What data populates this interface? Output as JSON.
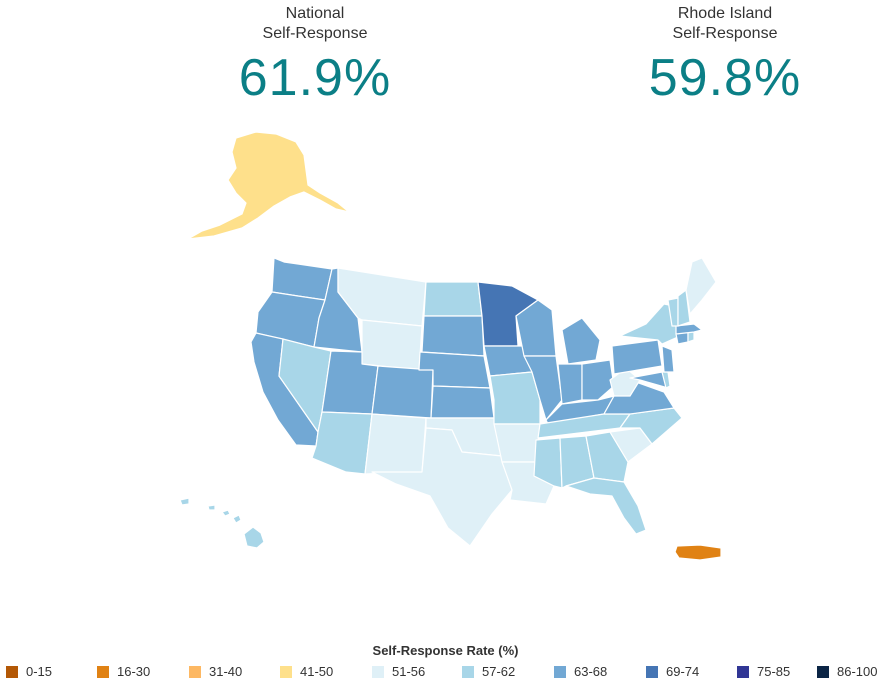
{
  "header": {
    "national": {
      "label_line1": "National",
      "label_line2": "Self-Response",
      "value": "61.9%"
    },
    "state": {
      "label_line1": "Rhode Island",
      "label_line2": "Self-Response",
      "value": "59.8%"
    }
  },
  "legend": {
    "title": "Self-Response Rate (%)",
    "items": [
      {
        "label": "0-15",
        "color": "#b35806"
      },
      {
        "label": "16-30",
        "color": "#e08214"
      },
      {
        "label": "31-40",
        "color": "#fdb863"
      },
      {
        "label": "41-50",
        "color": "#fee08b"
      },
      {
        "label": "51-56",
        "color": "#dff0f7"
      },
      {
        "label": "57-62",
        "color": "#a8d6e8"
      },
      {
        "label": "63-68",
        "color": "#72a8d4"
      },
      {
        "label": "69-74",
        "color": "#4575b4"
      },
      {
        "label": "75-85",
        "color": "#313695"
      },
      {
        "label": "86-100",
        "color": "#0b2545"
      }
    ]
  },
  "map": {
    "regions": [
      {
        "name": "alaska",
        "bin": "41-50"
      },
      {
        "name": "hawaii",
        "bin": "57-62"
      },
      {
        "name": "puerto-rico",
        "bin": "16-30"
      },
      {
        "name": "washington",
        "bin": "63-68"
      },
      {
        "name": "oregon",
        "bin": "63-68"
      },
      {
        "name": "california",
        "bin": "63-68"
      },
      {
        "name": "idaho",
        "bin": "63-68"
      },
      {
        "name": "nevada",
        "bin": "57-62"
      },
      {
        "name": "montana",
        "bin": "51-56"
      },
      {
        "name": "wyoming",
        "bin": "51-56"
      },
      {
        "name": "utah",
        "bin": "63-68"
      },
      {
        "name": "arizona",
        "bin": "57-62"
      },
      {
        "name": "colorado",
        "bin": "63-68"
      },
      {
        "name": "new-mexico",
        "bin": "51-56"
      },
      {
        "name": "north-dakota",
        "bin": "57-62"
      },
      {
        "name": "south-dakota",
        "bin": "63-68"
      },
      {
        "name": "nebraska",
        "bin": "63-68"
      },
      {
        "name": "kansas",
        "bin": "63-68"
      },
      {
        "name": "oklahoma",
        "bin": "51-56"
      },
      {
        "name": "texas",
        "bin": "51-56"
      },
      {
        "name": "minnesota",
        "bin": "69-74"
      },
      {
        "name": "iowa",
        "bin": "63-68"
      },
      {
        "name": "missouri",
        "bin": "57-62"
      },
      {
        "name": "arkansas",
        "bin": "51-56"
      },
      {
        "name": "louisiana",
        "bin": "51-56"
      },
      {
        "name": "wisconsin",
        "bin": "63-68"
      },
      {
        "name": "illinois",
        "bin": "63-68"
      },
      {
        "name": "michigan",
        "bin": "63-68"
      },
      {
        "name": "indiana",
        "bin": "63-68"
      },
      {
        "name": "ohio",
        "bin": "63-68"
      },
      {
        "name": "kentucky",
        "bin": "63-68"
      },
      {
        "name": "tennessee",
        "bin": "57-62"
      },
      {
        "name": "mississippi",
        "bin": "57-62"
      },
      {
        "name": "alabama",
        "bin": "57-62"
      },
      {
        "name": "georgia",
        "bin": "57-62"
      },
      {
        "name": "florida",
        "bin": "57-62"
      },
      {
        "name": "south-carolina",
        "bin": "51-56"
      },
      {
        "name": "north-carolina",
        "bin": "57-62"
      },
      {
        "name": "virginia",
        "bin": "63-68"
      },
      {
        "name": "west-virginia",
        "bin": "51-56"
      },
      {
        "name": "pennsylvania",
        "bin": "63-68"
      },
      {
        "name": "new-york",
        "bin": "57-62"
      },
      {
        "name": "maryland",
        "bin": "63-68"
      },
      {
        "name": "delaware",
        "bin": "57-62"
      },
      {
        "name": "new-jersey",
        "bin": "63-68"
      },
      {
        "name": "connecticut",
        "bin": "63-68"
      },
      {
        "name": "rhode-island",
        "bin": "57-62"
      },
      {
        "name": "massachusetts",
        "bin": "63-68"
      },
      {
        "name": "vermont",
        "bin": "57-62"
      },
      {
        "name": "new-hampshire",
        "bin": "57-62"
      },
      {
        "name": "maine",
        "bin": "51-56"
      }
    ]
  }
}
